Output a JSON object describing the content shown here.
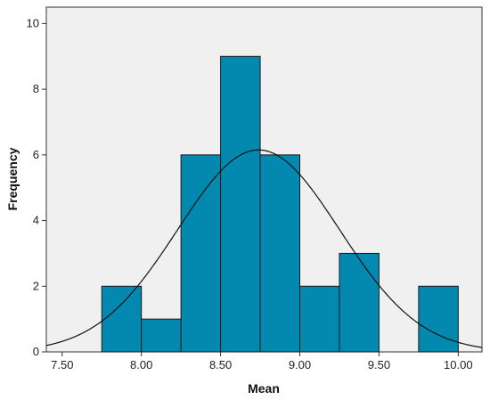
{
  "chart_data": {
    "type": "bar",
    "subtype": "histogram",
    "xlabel": "Mean",
    "ylabel": "Frequency",
    "xlim": [
      7.4,
      10.15
    ],
    "ylim": [
      0,
      10.5
    ],
    "x_ticks": [
      7.5,
      8.0,
      8.5,
      9.0,
      9.5,
      10.0
    ],
    "x_tick_labels": [
      "7.50",
      "8.00",
      "8.50",
      "9.00",
      "9.50",
      "10.00"
    ],
    "y_ticks": [
      0,
      2,
      4,
      6,
      8,
      10
    ],
    "y_tick_labels": [
      "0",
      "2",
      "4",
      "6",
      "8",
      "10"
    ],
    "bins": [
      {
        "start": 7.75,
        "end": 8.0,
        "count": 2
      },
      {
        "start": 8.0,
        "end": 8.25,
        "count": 1
      },
      {
        "start": 8.25,
        "end": 8.5,
        "count": 6
      },
      {
        "start": 8.5,
        "end": 8.75,
        "count": 9
      },
      {
        "start": 8.75,
        "end": 9.0,
        "count": 6
      },
      {
        "start": 9.0,
        "end": 9.25,
        "count": 2
      },
      {
        "start": 9.25,
        "end": 9.5,
        "count": 3
      },
      {
        "start": 9.5,
        "end": 9.75,
        "count": 0
      },
      {
        "start": 9.75,
        "end": 10.0,
        "count": 2
      }
    ],
    "normal_curve": {
      "mean": 8.74,
      "sd": 0.51,
      "peak": 6.15
    },
    "grid": false,
    "colors": {
      "bar_fill": "#0389b0",
      "bar_stroke": "#1a1a1a",
      "plot_bg": "#f0f0f0",
      "curve": "#111111"
    }
  }
}
